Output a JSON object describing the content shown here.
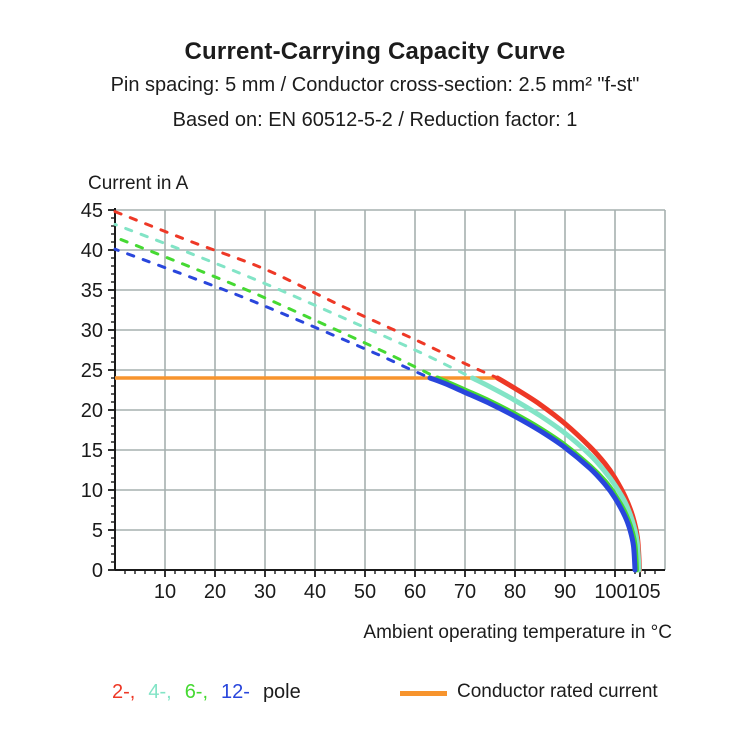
{
  "header": {
    "title": "Current-Carrying Capacity Curve",
    "subtitle1": "Pin spacing: 5 mm / Conductor cross-section: 2.5 mm² \"f-st\"",
    "subtitle2": "Based on: EN 60512-5-2 / Reduction factor: 1"
  },
  "chart_data": {
    "type": "line",
    "title": "Current-Carrying Capacity Curve",
    "xlabel": "Ambient operating temperature in °C",
    "ylabel": "Current in A",
    "xlim": [
      0,
      110
    ],
    "ylim": [
      0,
      45
    ],
    "x_ticks": [
      10,
      20,
      30,
      40,
      50,
      60,
      70,
      80,
      90,
      100,
      105
    ],
    "y_ticks": [
      0,
      5,
      10,
      15,
      20,
      25,
      30,
      35,
      40,
      45
    ],
    "x_minor_step": 2,
    "y_minor_step": 1,
    "grid": true,
    "grid_color": "#A6B0AF",
    "axis_color": "#1a1a1a",
    "rated_current": {
      "label": "Conductor rated current",
      "value": 24,
      "x_start": 0,
      "x_end": 76.5,
      "color": "#F7942D"
    },
    "series": [
      {
        "name": "2-pole",
        "color": "#EE3826",
        "dash_offset": 0,
        "dashed_points": [
          [
            0,
            44.8
          ],
          [
            15,
            41.1
          ],
          [
            30,
            37.6
          ],
          [
            45,
            33.1
          ],
          [
            60,
            28.8
          ],
          [
            70,
            25.8
          ],
          [
            76.5,
            24
          ]
        ],
        "solid_points": [
          [
            76.5,
            24
          ],
          [
            80,
            22.7
          ],
          [
            85,
            20.7
          ],
          [
            90,
            18.3
          ],
          [
            95,
            15.4
          ],
          [
            98,
            13.3
          ],
          [
            100,
            11.5
          ],
          [
            102,
            9.2
          ],
          [
            103.5,
            6.8
          ],
          [
            104.5,
            4.0
          ],
          [
            104.9,
            0
          ]
        ]
      },
      {
        "name": "4-pole",
        "color": "#82E4C6",
        "dash_offset": 5,
        "dashed_points": [
          [
            0,
            43.2
          ],
          [
            15,
            39.6
          ],
          [
            30,
            35.8
          ],
          [
            45,
            31.7
          ],
          [
            60,
            27.5
          ],
          [
            67,
            25.4
          ],
          [
            71.5,
            24
          ]
        ],
        "solid_points": [
          [
            71.5,
            24
          ],
          [
            75,
            22.9
          ],
          [
            80,
            21.2
          ],
          [
            85,
            19.3
          ],
          [
            90,
            17.1
          ],
          [
            95,
            14.4
          ],
          [
            98,
            12.3
          ],
          [
            100,
            10.6
          ],
          [
            102,
            8.5
          ],
          [
            103.5,
            6.1
          ],
          [
            104.4,
            3.7
          ],
          [
            104.8,
            0
          ]
        ]
      },
      {
        "name": "6-pole",
        "color": "#45D932",
        "dash_offset": 10,
        "dashed_points": [
          [
            0,
            41.6
          ],
          [
            13,
            38.4
          ],
          [
            26,
            35.1
          ],
          [
            39,
            31.5
          ],
          [
            52,
            27.8
          ],
          [
            60,
            25.4
          ],
          [
            64.5,
            24
          ]
        ],
        "solid_points": [
          [
            64.5,
            24
          ],
          [
            70,
            22.5
          ],
          [
            75,
            21.1
          ],
          [
            80,
            19.5
          ],
          [
            85,
            17.7
          ],
          [
            90,
            15.6
          ],
          [
            95,
            13.0
          ],
          [
            98,
            11.1
          ],
          [
            100,
            9.4
          ],
          [
            102,
            7.2
          ],
          [
            103.3,
            5.1
          ],
          [
            104.0,
            3.1
          ],
          [
            104.3,
            0
          ]
        ]
      },
      {
        "name": "12-pole",
        "color": "#2946DC",
        "dash_offset": 3,
        "dashed_points": [
          [
            0,
            40.1
          ],
          [
            13,
            37.1
          ],
          [
            26,
            34.0
          ],
          [
            39,
            30.6
          ],
          [
            52,
            27.1
          ],
          [
            59,
            25.1
          ],
          [
            63,
            24
          ]
        ],
        "solid_points": [
          [
            63,
            24
          ],
          [
            66,
            23.3
          ],
          [
            70,
            22.2
          ],
          [
            75,
            20.8
          ],
          [
            80,
            19.2
          ],
          [
            85,
            17.4
          ],
          [
            90,
            15.3
          ],
          [
            95,
            12.7
          ],
          [
            98,
            10.7
          ],
          [
            100,
            9.0
          ],
          [
            102,
            6.7
          ],
          [
            103,
            5.0
          ],
          [
            103.7,
            3.0
          ],
          [
            104,
            0
          ]
        ]
      }
    ]
  },
  "legend": {
    "poles": [
      {
        "label": "2-,",
        "color": "#EE3826"
      },
      {
        "label": "4-,",
        "color": "#82E4C6"
      },
      {
        "label": "6-,",
        "color": "#45D932"
      },
      {
        "label": "12-",
        "color": "#2946DC"
      }
    ],
    "pole_suffix": "pole",
    "rated_label": "Conductor rated current"
  }
}
